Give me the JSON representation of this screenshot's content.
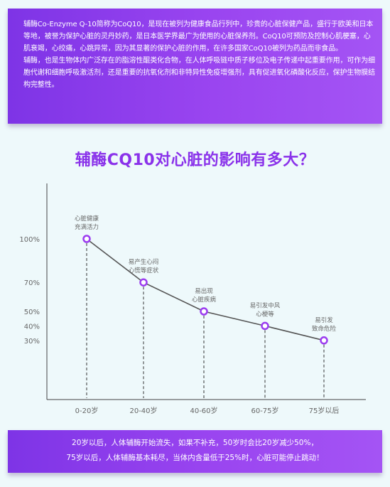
{
  "intro": {
    "paragraph1": "辅酶Co-Enzyme Q-10简称为CoQ10，是现在被列为健康食品行列中，珍贵的心脏保健产品，盛行于欧美和日本等地，被誉为保护心脏的灵丹妙药，是日本医学界最广为使用的心脏保养剂。CoQ10可预防及控制心肌梗塞，心肌衰竭，心绞痛，心跳异常，因为其显著的保护心脏的作用，在许多国家CoQ10被列为药品而非食品。",
    "paragraph2": "辅酶，也是生物体内广泛存在的脂溶性醌类化合物，在人体呼吸链中质子移位及电子传递中起重要作用，可作为细胞代谢和细胞呼吸激活剂，还是重要的抗氧化剂和非特异性免疫增强剂，具有促进氧化磷酸化反应，保护生物膜结构完整性。"
  },
  "chart_data": {
    "type": "line",
    "title": "辅酶CQ10对心脏的影响有多大？",
    "xlabel": "",
    "ylabel": "",
    "categories": [
      "0-20岁",
      "20-40岁",
      "40-60岁",
      "60-75岁",
      "75岁以后"
    ],
    "values": [
      100,
      70,
      50,
      40,
      30
    ],
    "y_tick_labels": [
      "100%",
      "70%",
      "50%",
      "40%",
      "30%"
    ],
    "point_labels": [
      [
        "心脏健康",
        "充满活力"
      ],
      [
        "易产生心闷",
        "心慌等症状"
      ],
      [
        "易出现",
        "心脏疾病"
      ],
      [
        "易引发中风",
        "心梗等"
      ],
      [
        "易引发",
        "致命危险"
      ]
    ],
    "grid": false,
    "legend": "none",
    "colors": {
      "line": "#555555",
      "marker": "#9b3cf0",
      "axis": "#444444",
      "guide": "#333333",
      "label": "#666666"
    }
  },
  "footer": {
    "line1": "20岁以后，人体辅酶开始流失，如果不补充，50岁时会比20岁减少50%，",
    "line2": "75岁以后，人体辅酶基本耗尽，当体内含量低于25%时，心脏可能停止跳动！"
  }
}
